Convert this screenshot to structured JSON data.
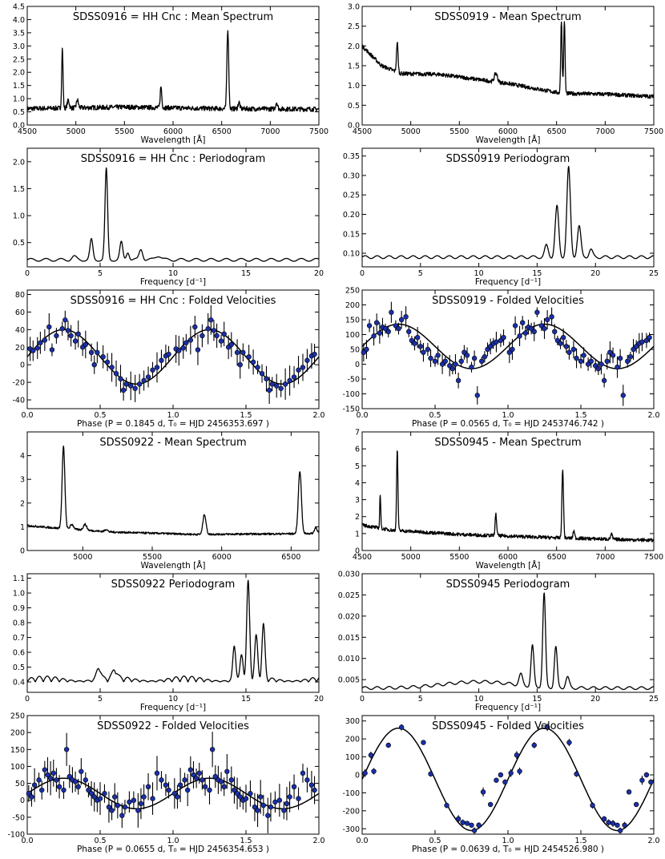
{
  "chart_data": [
    {
      "id": "p11",
      "type": "line",
      "title": "SDSS0916 = HH Cnc : Mean Spectrum",
      "xlabel": "Wavelength [Å]",
      "xlim": [
        4500,
        7500
      ],
      "ylim": [
        0.0,
        4.5
      ],
      "xticks": [
        4500,
        5000,
        5500,
        6000,
        6500,
        7000,
        7500
      ],
      "yticks": [
        0.0,
        0.5,
        1.0,
        1.5,
        2.0,
        2.5,
        3.0,
        3.5,
        4.0,
        4.5
      ],
      "continuum": [
        [
          4500,
          0.62
        ],
        [
          5500,
          0.68
        ],
        [
          6500,
          0.62
        ],
        [
          7500,
          0.6
        ]
      ],
      "noise": 0.09,
      "lines": [
        [
          4861,
          2.25,
          7
        ],
        [
          4922,
          0.3,
          10
        ],
        [
          5016,
          0.3,
          10
        ],
        [
          5876,
          0.8,
          8
        ],
        [
          6563,
          3.0,
          9
        ],
        [
          6678,
          0.25,
          9
        ],
        [
          7065,
          0.25,
          10
        ]
      ]
    },
    {
      "id": "p12",
      "type": "line",
      "title": "SDSS0919 - Mean Spectrum",
      "xlabel": "Wavelength [Å]",
      "xlim": [
        4500,
        7500
      ],
      "ylim": [
        0.0,
        3.0
      ],
      "xticks": [
        4500,
        5000,
        5500,
        6000,
        6500,
        7000,
        7500
      ],
      "yticks": [
        0.0,
        0.5,
        1.0,
        1.5,
        2.0,
        2.5,
        3.0
      ],
      "continuum": [
        [
          4500,
          2.0
        ],
        [
          4700,
          1.5
        ],
        [
          4900,
          1.3
        ],
        [
          5300,
          1.28
        ],
        [
          6000,
          1.05
        ],
        [
          6550,
          0.8
        ],
        [
          7000,
          0.78
        ],
        [
          7500,
          0.72
        ]
      ],
      "noise": 0.05,
      "lines": [
        [
          4861,
          0.75,
          8
        ],
        [
          5876,
          0.22,
          15
        ],
        [
          6550,
          1.85,
          7
        ],
        [
          6580,
          1.85,
          7
        ]
      ]
    },
    {
      "id": "p21",
      "type": "line",
      "title": "SDSS0916 = HH Cnc : Periodogram",
      "xlabel": "Frequency [d⁻¹]",
      "xlim": [
        0,
        20
      ],
      "ylim": [
        0.05,
        2.25
      ],
      "xticks": [
        0,
        5,
        10,
        15,
        20
      ],
      "yticks": [
        0.5,
        1.0,
        1.5,
        2.0
      ],
      "baseline": 0.18,
      "peaks": [
        [
          5.42,
          1.68,
          0.09
        ],
        [
          4.4,
          0.37,
          0.1
        ],
        [
          6.45,
          0.32,
          0.1
        ],
        [
          6.9,
          0.15,
          0.1
        ],
        [
          7.8,
          0.2,
          0.12
        ],
        [
          3.2,
          0.06,
          0.15
        ],
        [
          9.0,
          0.08,
          0.2
        ]
      ]
    },
    {
      "id": "p22",
      "type": "line",
      "title": "SDSS0919 Periodogram",
      "xlabel": "Frequency [d⁻¹]",
      "xlim": [
        0,
        25
      ],
      "ylim": [
        0.065,
        0.37
      ],
      "xticks": [
        0,
        5,
        10,
        15,
        20,
        25
      ],
      "yticks": [
        0.1,
        0.15,
        0.2,
        0.25,
        0.3,
        0.35
      ],
      "baseline": 0.09,
      "peaks": [
        [
          17.7,
          0.23,
          0.15
        ],
        [
          16.7,
          0.13,
          0.15
        ],
        [
          18.6,
          0.08,
          0.15
        ],
        [
          15.8,
          0.03,
          0.15
        ],
        [
          19.6,
          0.02,
          0.15
        ]
      ]
    },
    {
      "id": "p31",
      "type": "scatter",
      "title": "SDSS0916 = HH Cnc : Folded Velocities",
      "xlabel": "Phase (P =  0.1845 d,  T₀ = HJD 2456353.697 )",
      "xlim": [
        0.0,
        2.0
      ],
      "ylim": [
        -50,
        85
      ],
      "xticks": [
        0.0,
        0.5,
        1.0,
        1.5,
        2.0
      ],
      "yticks": [
        -40,
        -20,
        0,
        20,
        40,
        60,
        80
      ],
      "fit": {
        "gamma": 9,
        "K": 31,
        "phase0": 0.0
      },
      "errors": 12,
      "points": [
        [
          0.02,
          18
        ],
        [
          0.04,
          16
        ],
        [
          0.07,
          19
        ],
        [
          0.09,
          25
        ],
        [
          0.12,
          28
        ],
        [
          0.15,
          43
        ],
        [
          0.17,
          17
        ],
        [
          0.2,
          33
        ],
        [
          0.24,
          41
        ],
        [
          0.26,
          51
        ],
        [
          0.28,
          39
        ],
        [
          0.3,
          33
        ],
        [
          0.33,
          27
        ],
        [
          0.35,
          35
        ],
        [
          0.38,
          20
        ],
        [
          0.4,
          23
        ],
        [
          0.44,
          14
        ],
        [
          0.46,
          0
        ],
        [
          0.48,
          14
        ],
        [
          0.52,
          9
        ],
        [
          0.55,
          3
        ],
        [
          0.58,
          -3
        ],
        [
          0.61,
          -10
        ],
        [
          0.64,
          -16
        ],
        [
          0.66,
          -29
        ],
        [
          0.68,
          -22
        ],
        [
          0.71,
          -24
        ],
        [
          0.74,
          -27
        ],
        [
          0.77,
          -22
        ],
        [
          0.8,
          -18
        ],
        [
          0.83,
          -14
        ],
        [
          0.86,
          -6
        ],
        [
          0.89,
          -3
        ],
        [
          0.92,
          5
        ],
        [
          0.95,
          10
        ],
        [
          0.97,
          12
        ]
      ]
    },
    {
      "id": "p32",
      "type": "scatter",
      "title": "SDSS0919 - Folded Velocities",
      "xlabel": "Phase (P =  0.0565 d,  T₀ = HJD 2453746.742 )",
      "xlim": [
        0.0,
        2.0
      ],
      "ylim": [
        -150,
        250
      ],
      "xticks": [
        0.0,
        0.5,
        1.0,
        1.5,
        2.0
      ],
      "yticks": [
        -150,
        -100,
        -50,
        0,
        50,
        100,
        150,
        200,
        250
      ],
      "fit": {
        "gamma": 60,
        "K": 75,
        "phase0": 0.0
      },
      "errors": 25,
      "points": [
        [
          0.01,
          40
        ],
        [
          0.03,
          50
        ],
        [
          0.05,
          130
        ],
        [
          0.08,
          95
        ],
        [
          0.1,
          140
        ],
        [
          0.12,
          105
        ],
        [
          0.14,
          125
        ],
        [
          0.16,
          120
        ],
        [
          0.18,
          110
        ],
        [
          0.2,
          175
        ],
        [
          0.23,
          130
        ],
        [
          0.25,
          120
        ],
        [
          0.27,
          150
        ],
        [
          0.3,
          160
        ],
        [
          0.32,
          110
        ],
        [
          0.34,
          80
        ],
        [
          0.36,
          70
        ],
        [
          0.38,
          90
        ],
        [
          0.4,
          60
        ],
        [
          0.42,
          40
        ],
        [
          0.45,
          50
        ],
        [
          0.47,
          20
        ],
        [
          0.5,
          10
        ],
        [
          0.52,
          30
        ],
        [
          0.55,
          0
        ],
        [
          0.57,
          10
        ],
        [
          0.6,
          -5
        ],
        [
          0.62,
          -15
        ],
        [
          0.64,
          0
        ],
        [
          0.66,
          -55
        ],
        [
          0.68,
          10
        ],
        [
          0.7,
          40
        ],
        [
          0.72,
          30
        ],
        [
          0.75,
          -10
        ],
        [
          0.77,
          20
        ],
        [
          0.79,
          -105
        ],
        [
          0.82,
          10
        ],
        [
          0.84,
          25
        ],
        [
          0.86,
          50
        ],
        [
          0.88,
          60
        ],
        [
          0.9,
          70
        ],
        [
          0.92,
          75
        ],
        [
          0.95,
          80
        ],
        [
          0.97,
          90
        ]
      ]
    },
    {
      "id": "p41",
      "type": "line",
      "title": "SDSS0922 - Mean Spectrum",
      "xlabel": "Wavelength [Å]",
      "xlim": [
        4600,
        6700
      ],
      "ylim": [
        0.0,
        5.0
      ],
      "xticks": [
        5000,
        5500,
        6000,
        6500
      ],
      "yticks": [
        0,
        1,
        2,
        3,
        4
      ],
      "continuum": [
        [
          4600,
          1.05
        ],
        [
          4800,
          0.95
        ],
        [
          5200,
          0.78
        ],
        [
          5800,
          0.68
        ],
        [
          6400,
          0.7
        ],
        [
          6700,
          0.72
        ]
      ],
      "noise": 0.04,
      "lines": [
        [
          4861,
          3.45,
          10
        ],
        [
          4922,
          0.2,
          12
        ],
        [
          5016,
          0.25,
          12
        ],
        [
          5169,
          0.1,
          10
        ],
        [
          5876,
          0.85,
          11
        ],
        [
          6563,
          2.65,
          11
        ],
        [
          6678,
          0.25,
          10
        ]
      ]
    },
    {
      "id": "p42",
      "type": "line",
      "title": "SDSS0945 - Mean Spectrum",
      "xlabel": "Wavelength [Å]",
      "xlim": [
        4500,
        7500
      ],
      "ylim": [
        0,
        7
      ],
      "xticks": [
        4500,
        5000,
        5500,
        6000,
        6500,
        7000,
        7500
      ],
      "yticks": [
        0,
        1,
        2,
        3,
        4,
        5,
        6,
        7
      ],
      "continuum": [
        [
          4500,
          1.5
        ],
        [
          4800,
          1.2
        ],
        [
          5500,
          0.95
        ],
        [
          6500,
          0.75
        ],
        [
          7500,
          0.6
        ]
      ],
      "noise": 0.1,
      "lines": [
        [
          4686,
          2.0,
          5
        ],
        [
          4861,
          4.8,
          7
        ],
        [
          5876,
          1.25,
          8
        ],
        [
          6563,
          4.0,
          8
        ],
        [
          6678,
          0.45,
          8
        ],
        [
          7065,
          0.3,
          9
        ]
      ]
    },
    {
      "id": "p51",
      "type": "line",
      "title": "SDSS0922 Periodogram",
      "xlabel": "Frequency [d⁻¹]",
      "xlim": [
        0,
        20
      ],
      "ylim": [
        0.33,
        1.13
      ],
      "xticks": [
        0,
        5,
        10,
        15,
        20
      ],
      "yticks": [
        0.4,
        0.5,
        0.6,
        0.7,
        0.8,
        0.9,
        1.0,
        1.1
      ],
      "baseline": 0.4,
      "wiggle": 0.04,
      "peaks": [
        [
          15.15,
          0.65,
          0.1
        ],
        [
          16.2,
          0.36,
          0.1
        ],
        [
          14.2,
          0.23,
          0.1
        ],
        [
          15.7,
          0.28,
          0.1
        ],
        [
          14.7,
          0.16,
          0.1
        ],
        [
          4.9,
          0.08,
          0.15
        ],
        [
          6.0,
          0.06,
          0.15
        ]
      ]
    },
    {
      "id": "p52",
      "type": "line",
      "title": "SDSS0945 Periodogram",
      "xlabel": "Frequency [d⁻¹]",
      "xlim": [
        0,
        25
      ],
      "ylim": [
        0.002,
        0.03
      ],
      "xticks": [
        0,
        5,
        10,
        15,
        20,
        25
      ],
      "yticks": [
        0.005,
        0.01,
        0.015,
        0.02,
        0.025,
        0.03
      ],
      "baseline": 0.003,
      "peaks": [
        [
          15.6,
          0.022,
          0.12
        ],
        [
          14.6,
          0.0095,
          0.12
        ],
        [
          16.6,
          0.0095,
          0.12
        ],
        [
          13.6,
          0.0025,
          0.15
        ],
        [
          17.6,
          0.0025,
          0.15
        ],
        [
          10.0,
          0.0015,
          3.0
        ]
      ]
    },
    {
      "id": "p61",
      "type": "scatter",
      "title": "SDSS0922 - Folded Velocities",
      "xlabel": "Phase (P =  0.0655 d,  T₀ = HJD 2456354.653 )",
      "xlim": [
        0.0,
        2.0
      ],
      "ylim": [
        -100,
        250
      ],
      "xticks": [
        0.0,
        0.5,
        1.0,
        1.5,
        2.0
      ],
      "yticks": [
        -100,
        -50,
        0,
        50,
        100,
        150,
        200,
        250
      ],
      "fit": {
        "gamma": 20,
        "K": 45,
        "phase0": 0.0
      },
      "errors": 35,
      "points": [
        [
          0.01,
          20
        ],
        [
          0.03,
          10
        ],
        [
          0.05,
          45
        ],
        [
          0.08,
          60
        ],
        [
          0.1,
          30
        ],
        [
          0.12,
          90
        ],
        [
          0.14,
          75
        ],
        [
          0.16,
          65
        ],
        [
          0.18,
          80
        ],
        [
          0.2,
          60
        ],
        [
          0.22,
          40
        ],
        [
          0.25,
          30
        ],
        [
          0.27,
          150
        ],
        [
          0.29,
          70
        ],
        [
          0.31,
          60
        ],
        [
          0.33,
          55
        ],
        [
          0.35,
          40
        ],
        [
          0.37,
          85
        ],
        [
          0.4,
          60
        ],
        [
          0.42,
          30
        ],
        [
          0.44,
          20
        ],
        [
          0.46,
          10
        ],
        [
          0.48,
          0
        ],
        [
          0.5,
          5
        ],
        [
          0.53,
          20
        ],
        [
          0.56,
          -20
        ],
        [
          0.58,
          -30
        ],
        [
          0.6,
          10
        ],
        [
          0.62,
          -15
        ],
        [
          0.65,
          -45
        ],
        [
          0.67,
          -20
        ],
        [
          0.7,
          -5
        ],
        [
          0.73,
          0
        ],
        [
          0.76,
          -30
        ],
        [
          0.78,
          -10
        ],
        [
          0.8,
          10
        ],
        [
          0.83,
          40
        ],
        [
          0.86,
          5
        ],
        [
          0.89,
          80
        ],
        [
          0.92,
          60
        ],
        [
          0.95,
          45
        ],
        [
          0.97,
          30
        ]
      ]
    },
    {
      "id": "p62",
      "type": "scatter",
      "title": "SDSS0945 - Folded Velocities",
      "xlabel": "Phase (P =  0.0639 d,  T₀ = HJD 2454526.980 )",
      "xlim": [
        0.0,
        2.0
      ],
      "ylim": [
        -330,
        330
      ],
      "xticks": [
        0.0,
        0.5,
        1.0,
        1.5,
        2.0
      ],
      "yticks": [
        -300,
        -200,
        -100,
        0,
        100,
        200,
        300
      ],
      "fit": {
        "gamma": -25,
        "K": 285,
        "phase0": 0.0
      },
      "errors": 18,
      "points": [
        [
          0.02,
          10
        ],
        [
          0.06,
          110
        ],
        [
          0.08,
          20
        ],
        [
          0.18,
          165
        ],
        [
          0.27,
          265
        ],
        [
          0.42,
          180
        ],
        [
          0.47,
          5
        ],
        [
          0.58,
          -170
        ],
        [
          0.66,
          -245
        ],
        [
          0.69,
          -265
        ],
        [
          0.72,
          -270
        ],
        [
          0.75,
          -280
        ],
        [
          0.77,
          -310
        ],
        [
          0.8,
          -280
        ],
        [
          0.83,
          -95
        ],
        [
          0.88,
          -165
        ],
        [
          0.92,
          -30
        ],
        [
          0.95,
          0
        ],
        [
          0.98,
          -40
        ]
      ]
    }
  ]
}
